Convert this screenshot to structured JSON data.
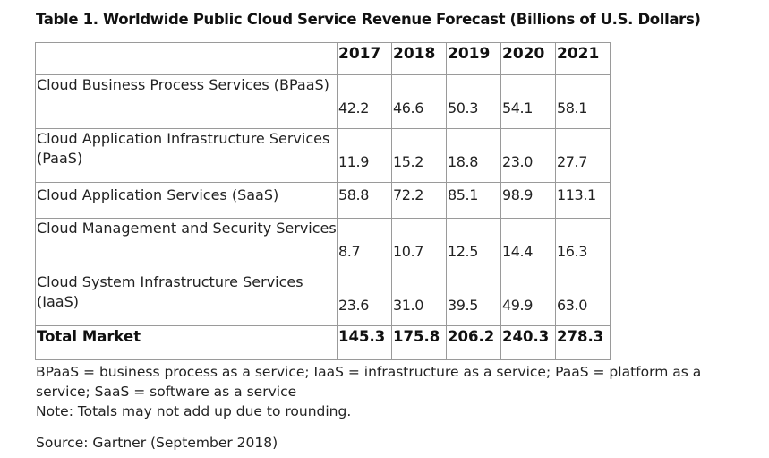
{
  "title": "Table 1. Worldwide Public Cloud Service Revenue Forecast (Billions of U.S. Dollars)",
  "table": {
    "corner": "",
    "years": [
      "2017",
      "2018",
      "2019",
      "2020",
      "2021"
    ],
    "rows": [
      {
        "label": "Cloud Business Process Services (BPaaS)",
        "values": [
          "42.2",
          "46.6",
          "50.3",
          "54.1",
          "58.1"
        ]
      },
      {
        "label": "Cloud Application Infrastructure Services (PaaS)",
        "values": [
          "11.9",
          "15.2",
          "18.8",
          "23.0",
          "27.7"
        ]
      },
      {
        "label": "Cloud Application Services (SaaS)",
        "values": [
          "58.8",
          "72.2",
          "85.1",
          "98.9",
          "113.1"
        ]
      },
      {
        "label": "Cloud Management and Security Services",
        "values": [
          "8.7",
          "10.7",
          "12.5",
          "14.4",
          "16.3"
        ]
      },
      {
        "label": "Cloud System Infrastructure Services (IaaS)",
        "values": [
          "23.6",
          "31.0",
          "39.5",
          "49.9",
          "63.0"
        ]
      }
    ],
    "total": {
      "label": "Total Market",
      "values": [
        "145.3",
        "175.8",
        "206.2",
        "240.3",
        "278.3"
      ]
    }
  },
  "notes": {
    "abbreviations": "BPaaS = business process as a service; IaaS = infrastructure as a service; PaaS = platform as a service; SaaS = software as a service",
    "rounding": "Note: Totals may not add up due to rounding."
  },
  "source": "Source: Gartner (September 2018)"
}
